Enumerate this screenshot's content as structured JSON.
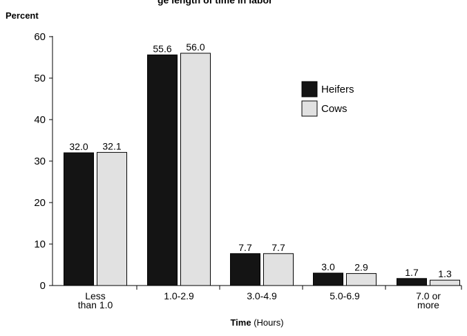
{
  "chart_data": {
    "type": "bar",
    "title": "Percent of Operations by Average Length of Time Heifers and Cows Were in Labor",
    "visible_title_fragment": "ge length of time in labor",
    "ylabel": "Percent",
    "xlabel_bold": "Time",
    "xlabel_rest": "(Hours)",
    "ylim": [
      0,
      60
    ],
    "yticks": [
      "0",
      "10",
      "20",
      "30",
      "40",
      "50",
      "60"
    ],
    "categories": [
      [
        "Less",
        "than 1.0"
      ],
      [
        "1.0-2.9"
      ],
      [
        "3.0-4.9"
      ],
      [
        "5.0-6.9"
      ],
      [
        "7.0 or",
        "more"
      ]
    ],
    "series": [
      {
        "name": "Heifers",
        "color": "#141414",
        "values": [
          32.0,
          55.6,
          7.7,
          3.0,
          1.7
        ],
        "labels": [
          "32.0",
          "55.6",
          "7.7",
          "3.0",
          "1.7"
        ]
      },
      {
        "name": "Cows",
        "color": "#e1e1e1",
        "values": [
          32.1,
          56.0,
          7.7,
          2.9,
          1.3
        ],
        "labels": [
          "32.1",
          "56.0",
          "7.7",
          "2.9",
          "1.3"
        ]
      }
    ],
    "legend_position": "upper-right",
    "grid": false
  }
}
